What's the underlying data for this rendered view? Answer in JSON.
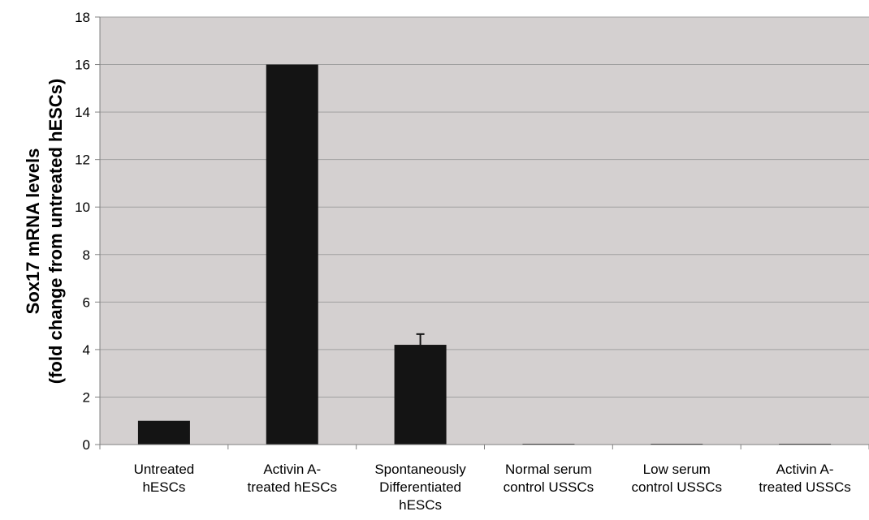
{
  "chart_data": {
    "type": "bar",
    "title": "",
    "xlabel": "",
    "ylabel_lines": [
      "Sox17 mRNA levels",
      "(fold change from untreated hESCs)"
    ],
    "ylim": [
      0,
      18
    ],
    "yticks": [
      0,
      2,
      4,
      6,
      8,
      10,
      12,
      14,
      16,
      18
    ],
    "grid": true,
    "legend": "none",
    "categories": [
      [
        "Untreated",
        "hESCs"
      ],
      [
        "Activin A-",
        "treated hESCs"
      ],
      [
        "Spontaneously",
        "Differentiated",
        "hESCs"
      ],
      [
        "Normal serum",
        "control USSCs"
      ],
      [
        "Low serum",
        "control USSCs"
      ],
      [
        "Activin A-",
        "treated USSCs"
      ]
    ],
    "values": [
      1.0,
      16.0,
      4.2,
      0.02,
      0.02,
      0.02
    ],
    "error": [
      0,
      0,
      0.45,
      0,
      0,
      0
    ],
    "colors": {
      "plot_background": "#d4d0d0",
      "bar": "#141414",
      "gridline": "#a0a0a0",
      "axis": "#808080"
    }
  }
}
